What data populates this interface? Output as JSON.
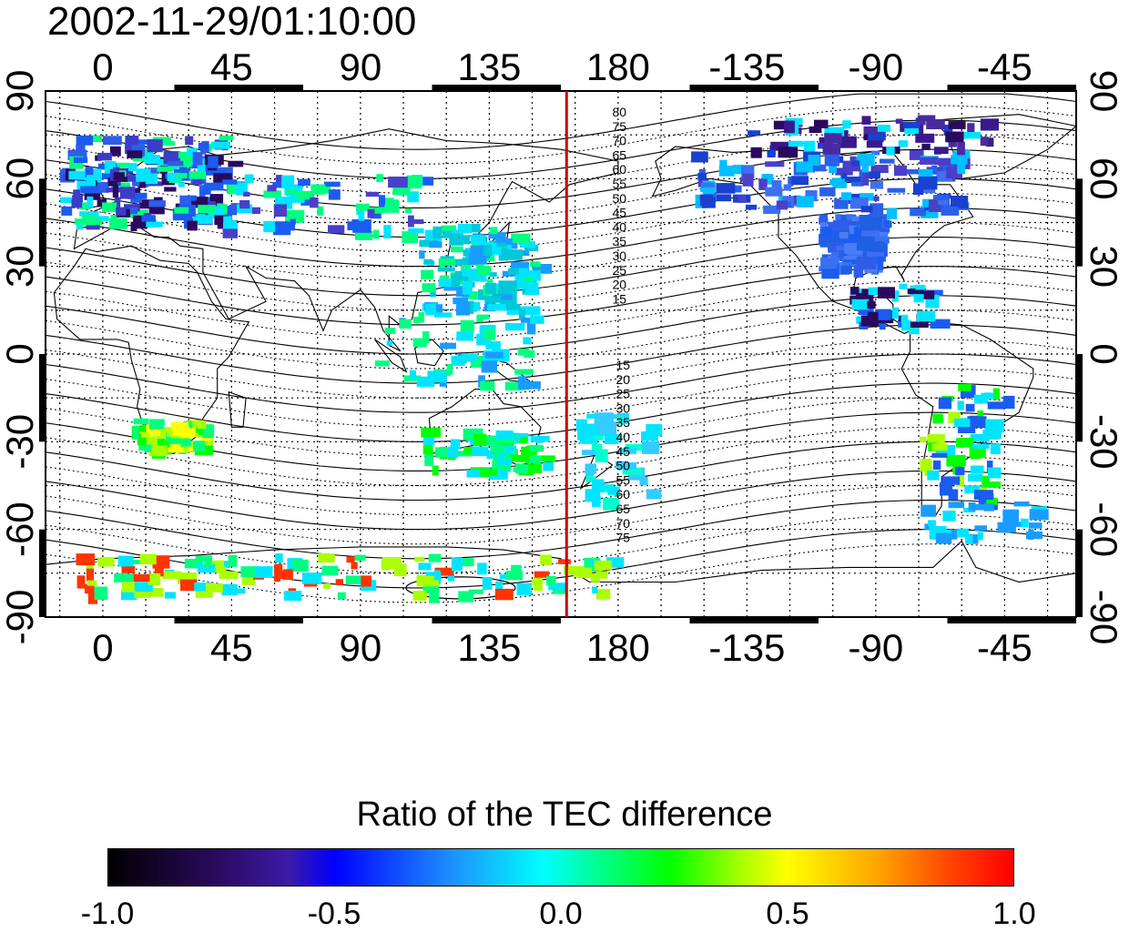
{
  "title": "2002-11-29/01:10:00",
  "map": {
    "lon_ticks": [
      "0",
      "45",
      "90",
      "135",
      "180",
      "-135",
      "-90",
      "-45"
    ],
    "lat_ticks_left": [
      "90",
      "60",
      "30",
      "0",
      "-30",
      "-60",
      "-90"
    ],
    "lat_ticks_right": [
      "90",
      "60",
      "30",
      "0",
      "-30",
      "-60",
      "-90"
    ],
    "lon_range": [
      -20,
      340
    ],
    "lat_range": [
      -90,
      90
    ],
    "grid": true,
    "terminator_longitude": 162,
    "terminator_color": "#cc0000",
    "contour_labels_north": [
      "80",
      "75",
      "70",
      "65",
      "60",
      "55",
      "50",
      "45",
      "40",
      "35",
      "30",
      "25",
      "20",
      "15"
    ],
    "contour_labels_south": [
      "15",
      "20",
      "25",
      "30",
      "35",
      "40",
      "45",
      "50",
      "55",
      "60",
      "65",
      "70",
      "75"
    ]
  },
  "colorbar": {
    "title": "Ratio of the TEC difference",
    "min": -1.0,
    "max": 1.0,
    "tick_labels": [
      "-1.0",
      "-0.5",
      "0.0",
      "0.5",
      "1.0"
    ]
  }
}
